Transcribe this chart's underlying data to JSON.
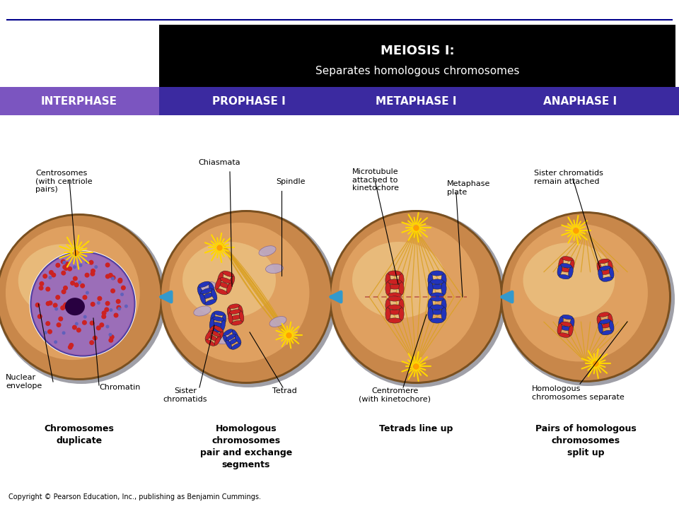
{
  "title_main": "MEIOSIS I:",
  "title_sub": "Separates homologous chromosomes",
  "header_bg_black": "#000000",
  "header_bg_purple": "#3B2AA0",
  "header_bg_purple_interphase": "#7B55C0",
  "header_text_color": "#FFFFFF",
  "stages": [
    "INTERPHASE",
    "PROPHASE I",
    "METAPHASE I",
    "ANAPHASE I"
  ],
  "cell_descriptions": [
    "Chromosomes\nduplicate",
    "Homologous\nchromosomes\npair and exchange\nsegments",
    "Tetrads line up",
    "Pairs of homologous\nchromosomes\nsplit up"
  ],
  "copyright": "Copyright © Pearson Education, Inc., publishing as Benjamin Cummings.",
  "bg_color": "#FFFFFF",
  "arrow_color": "#3399CC",
  "cell_border_dark": "#7A5020",
  "cell_border_gray": "#A0A0A8",
  "cell_outer_color": "#C8874A",
  "cell_inner_color": "#DFA060",
  "cell_light_center": "#F0D090",
  "nucleus_color": "#9060A8",
  "nucleus_edge": "#5040A0",
  "nucleus_dark": "#3A2060",
  "chromatin_red": "#CC2222",
  "chromatin_blue": "#4444BB",
  "red_chr": "#CC2222",
  "blue_chr": "#2233BB",
  "spindle_color": "#DAA020",
  "centrosome_color": "#FFD700",
  "top_line_color": "#00008B",
  "lavender_body": "#B8A8CC"
}
